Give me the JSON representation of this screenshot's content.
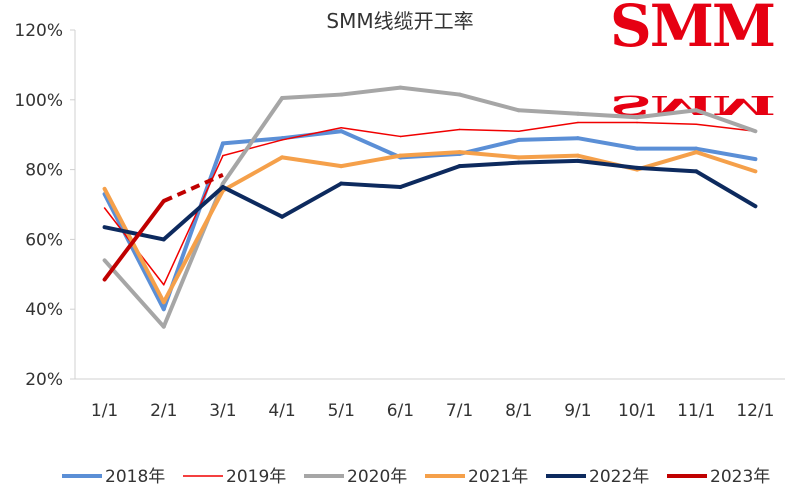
{
  "chart_data": {
    "type": "line",
    "title": "SMM线缆开工率",
    "categories": [
      "1/1",
      "2/1",
      "3/1",
      "4/1",
      "5/1",
      "6/1",
      "7/1",
      "8/1",
      "9/1",
      "10/1",
      "11/1",
      "12/1"
    ],
    "y_ticks": [
      "20%",
      "40%",
      "60%",
      "80%",
      "100%",
      "120%"
    ],
    "ylim": [
      20,
      120
    ],
    "xlabel": "",
    "ylabel": "",
    "grid": false,
    "legend_position": "bottom",
    "series": [
      {
        "name": "2018年",
        "color": "#5b8fd6",
        "width": "thick",
        "dashed_from": null,
        "values": [
          73,
          40,
          87.5,
          89,
          91,
          83.5,
          84.5,
          88.5,
          89,
          86,
          86,
          83
        ]
      },
      {
        "name": "2019年",
        "color": "#f00000",
        "width": "thin",
        "dashed_from": null,
        "values": [
          69,
          47,
          84,
          88.5,
          92,
          89.5,
          91.5,
          91,
          93.5,
          93.5,
          93,
          91
        ]
      },
      {
        "name": "2020年",
        "color": "#a6a6a6",
        "width": "thick",
        "dashed_from": null,
        "values": [
          54,
          35,
          76,
          100.5,
          101.5,
          103.5,
          101.5,
          97,
          96,
          95,
          97,
          91
        ]
      },
      {
        "name": "2021年",
        "color": "#f5a04a",
        "width": "thick",
        "dashed_from": null,
        "values": [
          74.5,
          42,
          74,
          83.5,
          81,
          84,
          85,
          83.5,
          84,
          80,
          85,
          79.5
        ]
      },
      {
        "name": "2022年",
        "color": "#0d2a5e",
        "width": "thick",
        "dashed_from": null,
        "values": [
          63.5,
          60,
          75,
          66.5,
          76,
          75,
          81,
          82,
          82.5,
          80.5,
          79.5,
          69.5
        ]
      },
      {
        "name": "2023年",
        "color": "#c00000",
        "width": "thick",
        "dashed_from": 1,
        "values": [
          48.5,
          71,
          78.5,
          null,
          null,
          null,
          null,
          null,
          null,
          null,
          null,
          null
        ]
      }
    ]
  },
  "logo": {
    "text": "SMM",
    "color": "#e60012"
  }
}
